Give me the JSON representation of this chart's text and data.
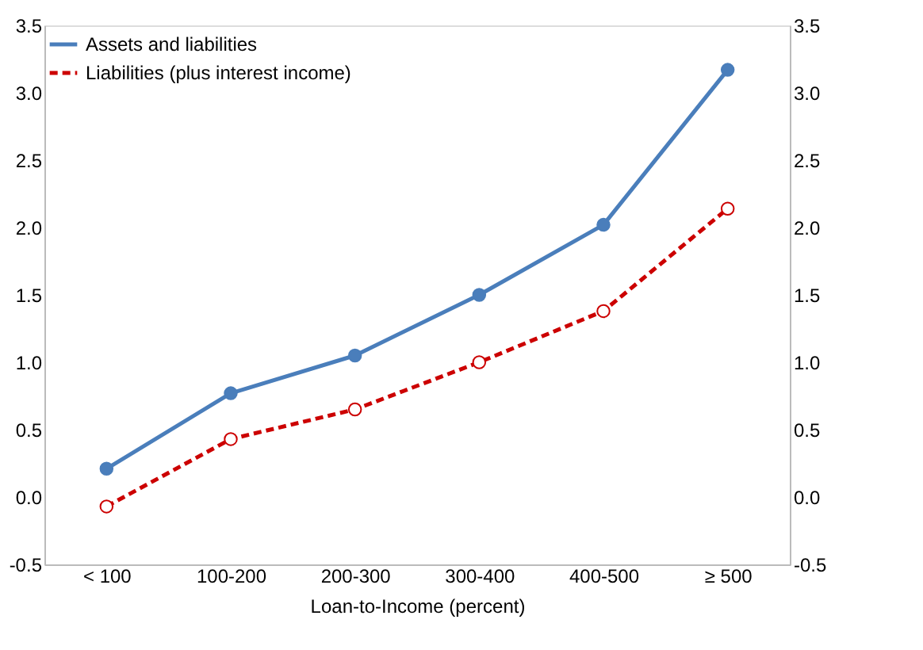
{
  "chart_data": {
    "type": "line",
    "xlabel": "Loan-to-Income (percent)",
    "categories": [
      "< 100",
      "100-200",
      "200-300",
      "300-400",
      "400-500",
      "≥ 500"
    ],
    "series": [
      {
        "name": "Assets and liabilities",
        "color": "#4a7ebb",
        "values": [
          0.21,
          0.77,
          1.05,
          1.5,
          2.02,
          3.17
        ],
        "line_style": "solid",
        "marker": "circle"
      },
      {
        "name": "Liabilities (plus interest income)",
        "color": "#cc0000",
        "values": [
          -0.07,
          0.43,
          0.65,
          1.0,
          1.38,
          2.14
        ],
        "line_style": "dashed",
        "marker": "circle"
      }
    ],
    "ylim": [
      -0.5,
      3.5
    ],
    "yticks": [
      -0.5,
      {
        "value": 0,
        "label": "0.0"
      },
      0.5,
      {
        "value": 1,
        "label": "1.0"
      },
      1.5,
      {
        "value": 2,
        "label": "2.0"
      },
      2.5,
      {
        "value": 3,
        "label": "3.0"
      },
      3.5
    ],
    "y2lim": [
      -0.5,
      3.5
    ],
    "y2ticks": [
      -0.5,
      {
        "value": 0,
        "label": "0.0"
      },
      0.5,
      {
        "value": 1,
        "label": "1.0"
      },
      1.5,
      {
        "value": 2,
        "label": "2.0"
      },
      2.5,
      {
        "value": 3,
        "label": "3.0"
      },
      3.5
    ],
    "legend": "top left",
    "grid": false
  }
}
